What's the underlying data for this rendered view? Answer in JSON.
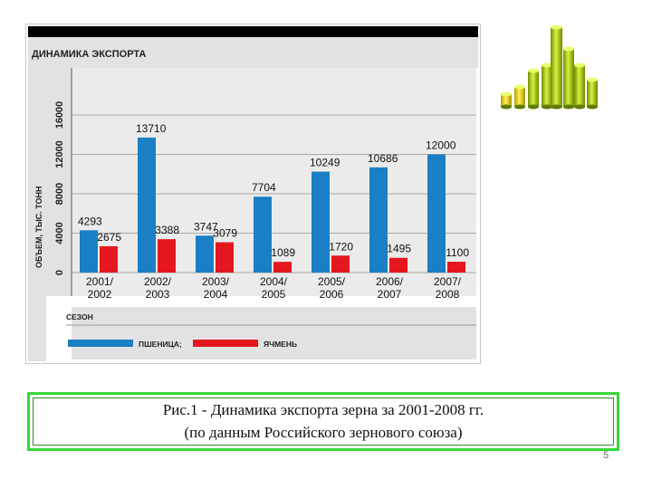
{
  "chart_data": {
    "type": "bar",
    "title": "ДИНАМИКА ЭКСПОРТА",
    "ylabel": "ОБЪЕМ, ТЫС. ТОНН",
    "xlabel": "СЕЗОН",
    "ylim": [
      0,
      16000
    ],
    "yticks": [
      0,
      4000,
      8000,
      12000,
      16000
    ],
    "grid": true,
    "legend_position": "bottom",
    "categories": [
      [
        "2001/",
        "2002"
      ],
      [
        "2002/",
        "2003"
      ],
      [
        "2003/",
        "2004"
      ],
      [
        "2004/",
        "2005"
      ],
      [
        "2005/",
        "2006"
      ],
      [
        "2006/",
        "2007"
      ],
      [
        "2007/",
        "2008"
      ]
    ],
    "series": [
      {
        "name": "ПШЕНИЦА;",
        "color": "#1a7fc4",
        "values": [
          4293,
          13710,
          3747,
          7704,
          10249,
          10686,
          12000
        ]
      },
      {
        "name": "ЯЧМЕНЬ",
        "color": "#e4171f",
        "values": [
          2675,
          3388,
          3079,
          1089,
          1720,
          1495,
          1100
        ]
      }
    ]
  },
  "caption": {
    "line1": "Рис.1 - Динамика экспорта зерна за 2001-2008 гг.",
    "line2": "(по данным Российского зернового союза)"
  },
  "page_number": "5",
  "decoration_icon": "3d-bar-chart-icon"
}
